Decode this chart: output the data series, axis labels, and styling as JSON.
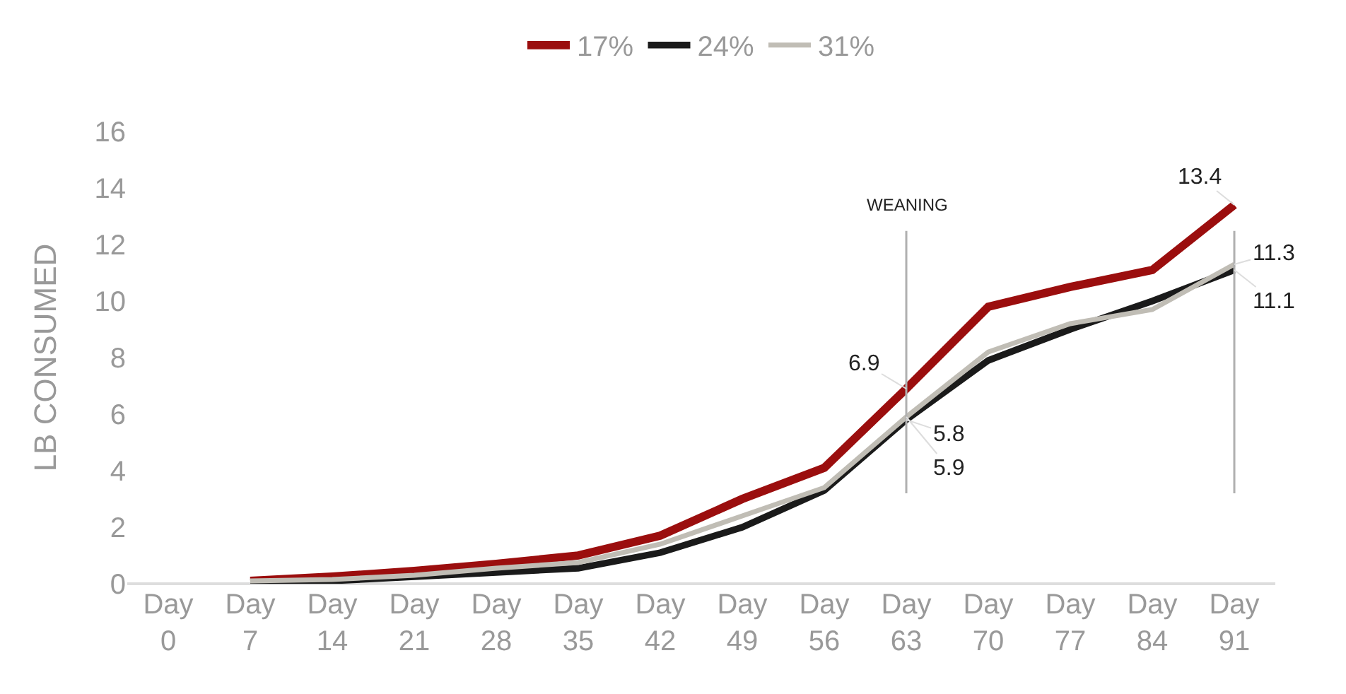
{
  "chart_data": {
    "type": "line",
    "ylabel": "LB CONSUMED",
    "categories": [
      "Day 0",
      "Day 7",
      "Day 14",
      "Day 21",
      "Day 28",
      "Day 35",
      "Day 42",
      "Day 49",
      "Day 56",
      "Day 63",
      "Day 70",
      "Day 77",
      "Day 84",
      "Day 91"
    ],
    "series": [
      {
        "name": "17%",
        "color": "#9b0e0e",
        "values": [
          null,
          0.1,
          0.25,
          0.45,
          0.7,
          1.0,
          1.7,
          3.0,
          4.1,
          6.9,
          9.8,
          10.5,
          11.1,
          13.4
        ],
        "value_labels": [
          null,
          null,
          null,
          null,
          null,
          null,
          null,
          null,
          null,
          "6.9",
          null,
          null,
          null,
          "13.4"
        ]
      },
      {
        "name": "24%",
        "color": "#1a1a1a",
        "values": [
          null,
          0.05,
          0.1,
          0.25,
          0.4,
          0.55,
          1.1,
          2.0,
          3.3,
          5.8,
          7.9,
          9.0,
          10.0,
          11.1
        ],
        "value_labels": [
          null,
          null,
          null,
          null,
          null,
          null,
          null,
          null,
          null,
          "5.8",
          null,
          null,
          null,
          "11.1"
        ]
      },
      {
        "name": "31%",
        "color": "#c0bdb5",
        "values": [
          null,
          0.1,
          0.15,
          0.3,
          0.55,
          0.75,
          1.4,
          2.4,
          3.4,
          5.9,
          8.2,
          9.2,
          9.7,
          11.3
        ],
        "value_labels": [
          null,
          null,
          null,
          null,
          null,
          null,
          null,
          null,
          null,
          "5.9",
          null,
          null,
          null,
          "11.3"
        ]
      }
    ],
    "ylim": [
      0,
      16
    ],
    "yticks": [
      0,
      2,
      4,
      6,
      8,
      10,
      12,
      14,
      16
    ],
    "grid": false,
    "legend": "top",
    "marker": "none",
    "line_style": "solid",
    "ref_lines": [
      {
        "axis": "x",
        "value": "Day 63",
        "label": "WEANING",
        "color": "#b0b0b0"
      },
      {
        "axis": "x",
        "value": "Day 91",
        "label": null,
        "color": "#b0b0b0"
      }
    ]
  }
}
